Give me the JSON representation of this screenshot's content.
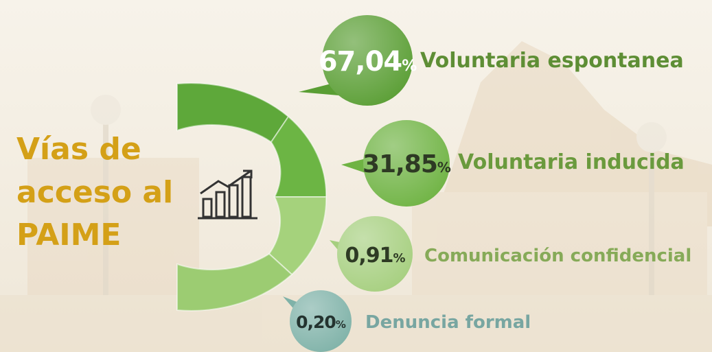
{
  "title": [
    "Vías de",
    "acceso al",
    "PAIME"
  ],
  "items": [
    {
      "value": "67,04",
      "unit": "%",
      "label": "Voluntaria espontanea"
    },
    {
      "value": "31,85",
      "unit": "%",
      "label": "Voluntaria inducida"
    },
    {
      "value": "0,91",
      "unit": "%",
      "label": "Comunicación confidencial"
    },
    {
      "value": "0,20",
      "unit": "%",
      "label": "Denuncia formal"
    }
  ]
}
